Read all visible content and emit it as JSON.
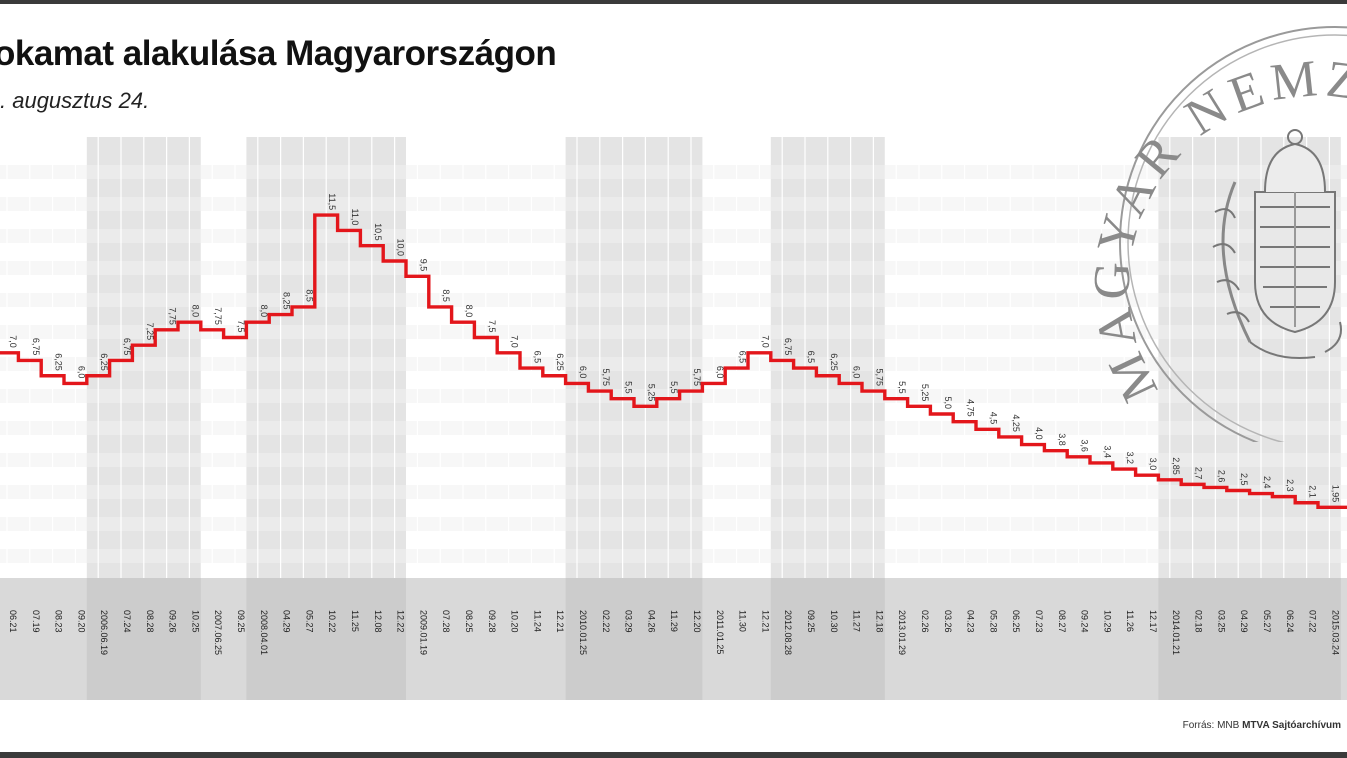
{
  "title": "okamat alakulása Magyarországon",
  "subtitle": ". augusztus 24.",
  "source": {
    "prefix": "Forrás: MNB ",
    "name": "MTVA Sajtóarchívum"
  },
  "seal": {
    "text": "MAGYAR NEMZETI BANK"
  },
  "colors": {
    "line": "#e3161b",
    "band": "#e4e4e4",
    "grid": "#ffffff",
    "axis_band": "#d9d9d9",
    "frame": "#3a3a3a"
  },
  "chart_data": {
    "type": "line",
    "step": true,
    "ylim": [
      0,
      13
    ],
    "grid": true,
    "legend": "none",
    "points": [
      {
        "date": "06.21",
        "value": 7.0,
        "label": "7,0"
      },
      {
        "date": "07.19",
        "value": 6.75,
        "label": "6,75"
      },
      {
        "date": "08.23",
        "value": 6.25,
        "label": "6,25"
      },
      {
        "date": "09.20",
        "value": 6.0,
        "label": "6,0"
      },
      {
        "date": "2006.06.19",
        "value": 6.25,
        "label": "6,25"
      },
      {
        "date": "07.24",
        "value": 6.75,
        "label": "6,75"
      },
      {
        "date": "08.28",
        "value": 7.25,
        "label": "7,25"
      },
      {
        "date": "09.26",
        "value": 7.75,
        "label": "7,75"
      },
      {
        "date": "10.25",
        "value": 8.0,
        "label": "8,0"
      },
      {
        "date": "2007.06.25",
        "value": 7.75,
        "label": "7,75"
      },
      {
        "date": "09.25",
        "value": 7.5,
        "label": "7,5"
      },
      {
        "date": "2008.04.01",
        "value": 8.0,
        "label": "8,0"
      },
      {
        "date": "04.29",
        "value": 8.25,
        "label": "8,25"
      },
      {
        "date": "05.27",
        "value": 8.5,
        "label": "8,5"
      },
      {
        "date": "10.22",
        "value": 11.5,
        "label": "11,5"
      },
      {
        "date": "11.25",
        "value": 11.0,
        "label": "11,0"
      },
      {
        "date": "12.08",
        "value": 10.5,
        "label": "10,5"
      },
      {
        "date": "12.22",
        "value": 10.0,
        "label": "10,0"
      },
      {
        "date": "2009.01.19",
        "value": 9.5,
        "label": "9,5"
      },
      {
        "date": "07.28",
        "value": 8.5,
        "label": "8,5"
      },
      {
        "date": "08.25",
        "value": 8.0,
        "label": "8,0"
      },
      {
        "date": "09.28",
        "value": 7.5,
        "label": "7,5"
      },
      {
        "date": "10.20",
        "value": 7.0,
        "label": "7,0"
      },
      {
        "date": "11.24",
        "value": 6.5,
        "label": "6,5"
      },
      {
        "date": "12.21",
        "value": 6.25,
        "label": "6,25"
      },
      {
        "date": "2010.01.25",
        "value": 6.0,
        "label": "6,0"
      },
      {
        "date": "02.22",
        "value": 5.75,
        "label": "5,75"
      },
      {
        "date": "03.29",
        "value": 5.5,
        "label": "5,5"
      },
      {
        "date": "04.26",
        "value": 5.25,
        "label": "5,25"
      },
      {
        "date": "11.29",
        "value": 5.5,
        "label": "5,5"
      },
      {
        "date": "12.20",
        "value": 5.75,
        "label": "5,75"
      },
      {
        "date": "2011.01.25",
        "value": 6.0,
        "label": "6,0"
      },
      {
        "date": "11.30",
        "value": 6.5,
        "label": "6,5"
      },
      {
        "date": "12.21",
        "value": 7.0,
        "label": "7,0"
      },
      {
        "date": "2012.08.28",
        "value": 6.75,
        "label": "6,75"
      },
      {
        "date": "09.25",
        "value": 6.5,
        "label": "6,5"
      },
      {
        "date": "10.30",
        "value": 6.25,
        "label": "6,25"
      },
      {
        "date": "11.27",
        "value": 6.0,
        "label": "6,0"
      },
      {
        "date": "12.18",
        "value": 5.75,
        "label": "5,75"
      },
      {
        "date": "2013.01.29",
        "value": 5.5,
        "label": "5,5"
      },
      {
        "date": "02.26",
        "value": 5.25,
        "label": "5,25"
      },
      {
        "date": "03.26",
        "value": 5.0,
        "label": "5,0"
      },
      {
        "date": "04.23",
        "value": 4.75,
        "label": "4,75"
      },
      {
        "date": "05.28",
        "value": 4.5,
        "label": "4,5"
      },
      {
        "date": "06.25",
        "value": 4.25,
        "label": "4,25"
      },
      {
        "date": "07.23",
        "value": 4.0,
        "label": "4,0"
      },
      {
        "date": "08.27",
        "value": 3.8,
        "label": "3,8"
      },
      {
        "date": "09.24",
        "value": 3.6,
        "label": "3,6"
      },
      {
        "date": "10.29",
        "value": 3.4,
        "label": "3,4"
      },
      {
        "date": "11.26",
        "value": 3.2,
        "label": "3,2"
      },
      {
        "date": "12.17",
        "value": 3.0,
        "label": "3,0"
      },
      {
        "date": "2014.01.21",
        "value": 2.85,
        "label": "2,85"
      },
      {
        "date": "02.18",
        "value": 2.7,
        "label": "2,7"
      },
      {
        "date": "03.25",
        "value": 2.6,
        "label": "2,6"
      },
      {
        "date": "04.29",
        "value": 2.5,
        "label": "2,5"
      },
      {
        "date": "05.27",
        "value": 2.4,
        "label": "2,4"
      },
      {
        "date": "06.24",
        "value": 2.3,
        "label": "2,3"
      },
      {
        "date": "07.22",
        "value": 2.1,
        "label": "2,1"
      },
      {
        "date": "2015.03.24",
        "value": 1.95,
        "label": "1,95"
      }
    ]
  }
}
